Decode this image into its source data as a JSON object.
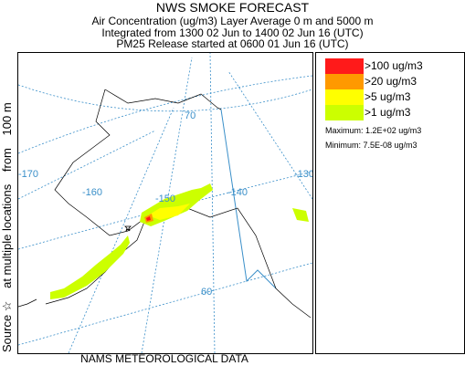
{
  "header": {
    "title": "NWS SMOKE FORECAST",
    "line2": "Air Concentration (ug/m3) Layer Average    0 m and  5000 m",
    "line3": "Integrated from 1300 02 Jun to 1400 02 Jun 16 (UTC)",
    "line4": "PM25 Release started at 0600 01 Jun 16 (UTC)"
  },
  "side_label": {
    "source": "Source ☆",
    "locations": "at multiple locations",
    "from": "from",
    "height": "100 m"
  },
  "footer": {
    "label": "NAMS METEOROLOGICAL DATA"
  },
  "legend": {
    "items": [
      {
        "label": ">100 ug/m3",
        "color": "#ff1a1a"
      },
      {
        "label": ">20 ug/m3",
        "color": "#ff9900"
      },
      {
        "label": ">5 ug/m3",
        "color": "#ffff00"
      },
      {
        "label": ">1 ug/m3",
        "color": "#ccff00"
      }
    ],
    "maximum": "Maximum: 1.2E+02 ug/m3",
    "minimum": "Minimum: 7.5E-08 ug/m3"
  },
  "map": {
    "longitude_labels": [
      "-170",
      "-160",
      "-150",
      "-140",
      "-130"
    ],
    "latitude_labels": [
      "70",
      "60"
    ],
    "grid_color": "#3a8fc9",
    "coast_color": "#000000",
    "border_color": "#3a8fc9"
  }
}
